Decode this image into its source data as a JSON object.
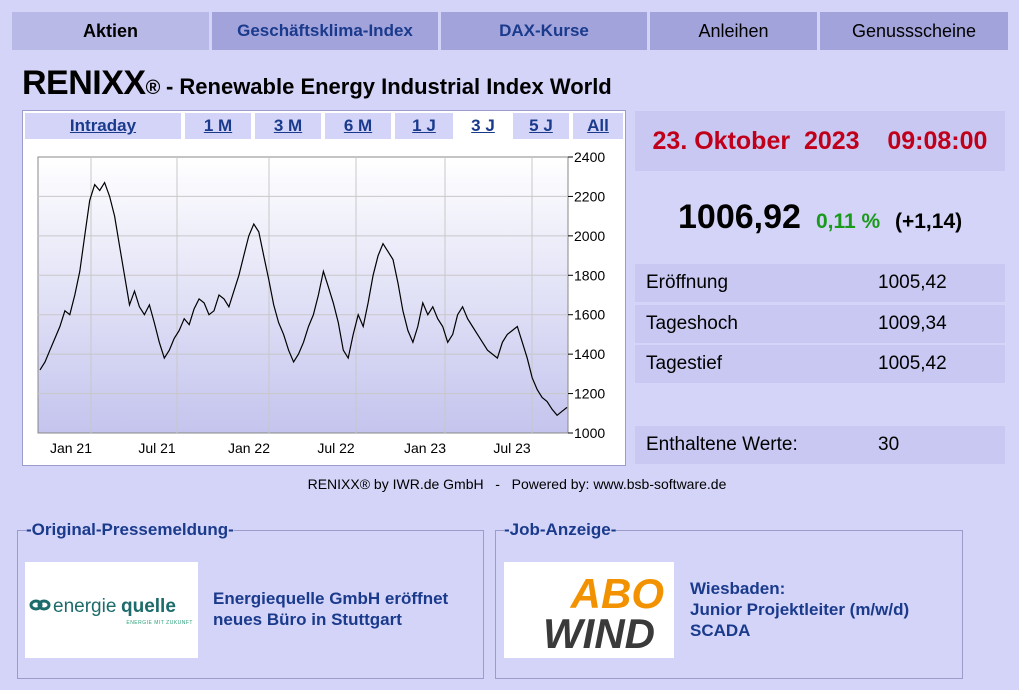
{
  "nav": {
    "tabs": [
      {
        "label": "Aktien",
        "state": "active"
      },
      {
        "label": "Geschäftsklima-Index",
        "state": "link"
      },
      {
        "label": "DAX-Kurse",
        "state": "link"
      },
      {
        "label": "Anleihen",
        "state": "normal"
      },
      {
        "label": "Genussscheine",
        "state": "normal"
      }
    ]
  },
  "header": {
    "title": "RENIXX",
    "reg": "®",
    "subtitle": " - Renewable Energy Industrial Index World"
  },
  "ranges": [
    "Intraday",
    "1 M",
    "3 M",
    "6 M",
    "1 J",
    "3 J",
    "5 J",
    "All"
  ],
  "selected_range": "3 J",
  "chart_data": {
    "type": "line",
    "yticks": [
      1000,
      1200,
      1400,
      1600,
      1800,
      2000,
      2200,
      2400
    ],
    "xticks": [
      "Jan 21",
      "Jul 21",
      "Jan 22",
      "Jul 22",
      "Jan 23",
      "Jul 23"
    ],
    "ylim": [
      1000,
      2400
    ],
    "grid": true,
    "series": [
      {
        "values": [
          1320,
          1360,
          1420,
          1480,
          1540,
          1620,
          1600,
          1700,
          1820,
          2000,
          2180,
          2260,
          2230,
          2270,
          2200,
          2100,
          1950,
          1800,
          1650,
          1720,
          1640,
          1600,
          1650,
          1560,
          1460,
          1380,
          1420,
          1480,
          1520,
          1580,
          1550,
          1630,
          1680,
          1660,
          1600,
          1620,
          1700,
          1680,
          1640,
          1720,
          1800,
          1900,
          2000,
          2060,
          2020,
          1900,
          1780,
          1650,
          1560,
          1500,
          1420,
          1360,
          1400,
          1460,
          1540,
          1600,
          1700,
          1820,
          1740,
          1660,
          1560,
          1420,
          1380,
          1500,
          1600,
          1540,
          1660,
          1800,
          1900,
          1960,
          1920,
          1880,
          1760,
          1620,
          1520,
          1460,
          1540,
          1660,
          1600,
          1640,
          1580,
          1540,
          1460,
          1500,
          1600,
          1640,
          1580,
          1540,
          1500,
          1460,
          1420,
          1400,
          1380,
          1460,
          1500,
          1520,
          1540,
          1460,
          1380,
          1280,
          1220,
          1180,
          1160,
          1120,
          1090,
          1110,
          1130
        ]
      }
    ]
  },
  "credit": "RENIXX® by IWR.de GmbH   -   Powered by: www.bsb-software.de",
  "quote": {
    "date": "23. Oktober  2023    09:08:00",
    "value": "1006,92",
    "change_pct": "0,11 %",
    "change_abs": "(+1,14)"
  },
  "stats": [
    {
      "label": "Eröffnung",
      "value": "1005,42"
    },
    {
      "label": "Tageshoch",
      "value": "1009,34"
    },
    {
      "label": "Tagestief",
      "value": "1005,42"
    },
    {
      "label": "Enthaltene Werte:",
      "value": "30"
    }
  ],
  "press": {
    "legend": "-Original-Pressemeldung-",
    "logo_text_a": "energie",
    "logo_text_b": "quelle",
    "logo_tag": "ENERGIE MIT ZUKUNFT",
    "headline": "Energiequelle GmbH eröffnet neues Büro in Stuttgart"
  },
  "job": {
    "legend": "-Job-Anzeige-",
    "logo_top": "ABO",
    "logo_bottom": "WIND",
    "line1": "Wiesbaden:",
    "line2": "Junior Projektleiter (m/w/d)",
    "line3": "SCADA"
  },
  "colors": {
    "background": "#d4d4f8",
    "nav": "#a3a3dc",
    "link": "#1a3a8c",
    "date": "#c0001a",
    "positive": "#1a9a1a",
    "abo_orange": "#f39200"
  }
}
